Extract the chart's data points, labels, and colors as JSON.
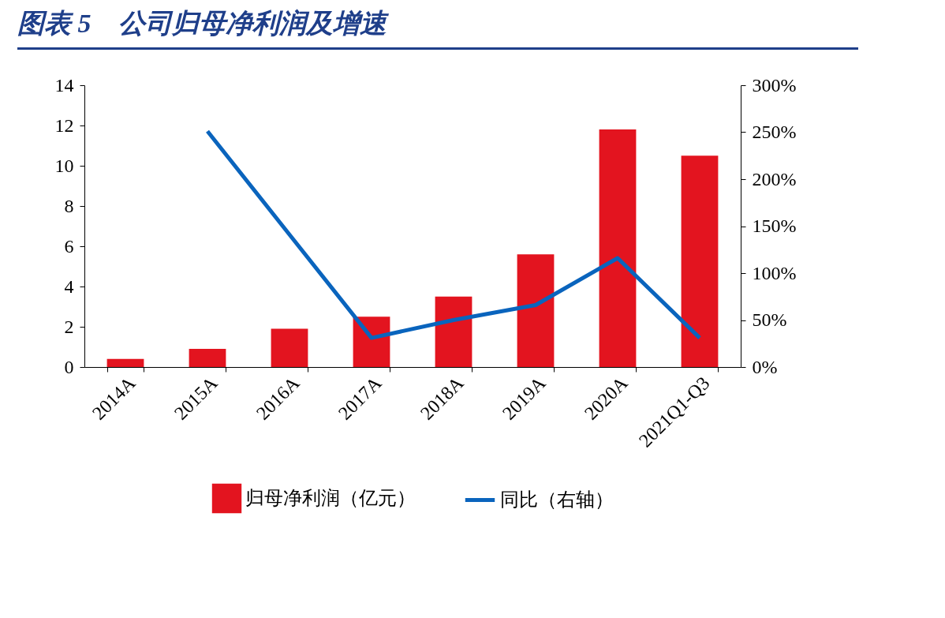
{
  "chart_data": {
    "type": "bar",
    "title": "图表 5　公司归母净利润及增速",
    "categories": [
      "2014A",
      "2015A",
      "2016A",
      "2017A",
      "2018A",
      "2019A",
      "2020A",
      "2021Q1-Q3"
    ],
    "series": [
      {
        "name": "归母净利润（亿元）",
        "color": "#e3141f",
        "values": [
          0.4,
          0.9,
          1.9,
          2.5,
          3.5,
          5.6,
          11.8,
          10.5
        ]
      },
      {
        "name": "同比（右轴）",
        "type": "line",
        "axis": "y2",
        "color": "#0a64bd",
        "values": [
          null,
          251,
          141,
          31,
          50,
          66,
          116,
          31
        ]
      }
    ],
    "ylim": [
      0,
      14
    ],
    "yticks": [
      0,
      2,
      4,
      6,
      8,
      10,
      12,
      14
    ],
    "y2lim": [
      0,
      300
    ],
    "y2ticks": [
      {
        "value": 0,
        "label": "0%"
      },
      {
        "value": 50,
        "label": "50%"
      },
      {
        "value": 100,
        "label": "100%"
      },
      {
        "value": 150,
        "label": "150%"
      },
      {
        "value": 200,
        "label": "200%"
      },
      {
        "value": 250,
        "label": "250%"
      },
      {
        "value": 300,
        "label": "300%"
      }
    ],
    "grid": false,
    "legend": "bottom"
  }
}
